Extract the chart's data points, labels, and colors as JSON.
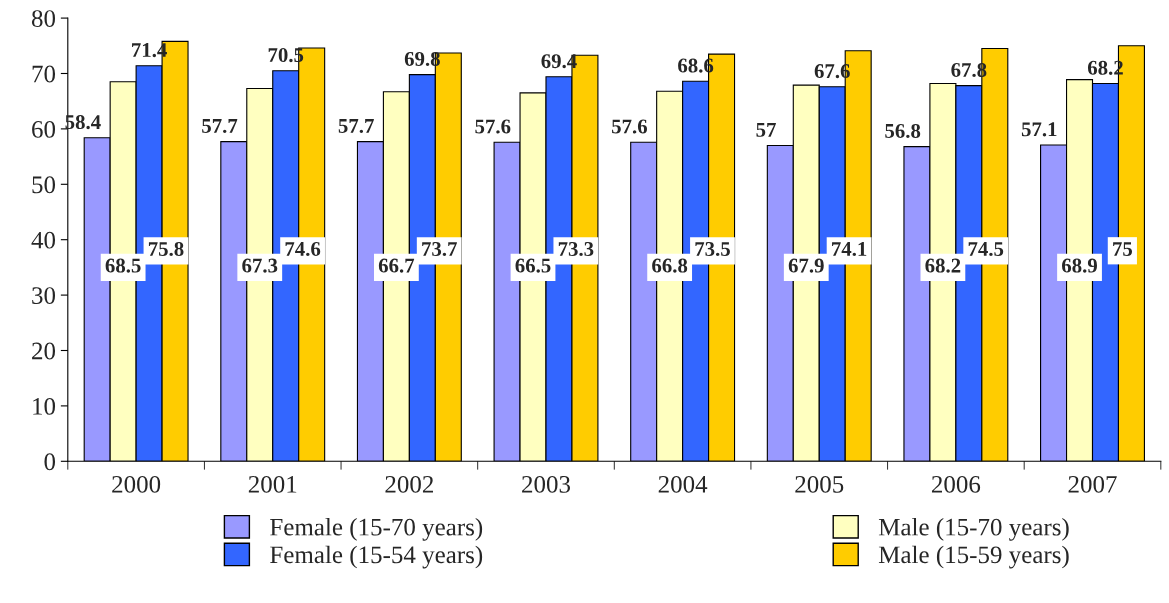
{
  "chart_data": {
    "type": "bar",
    "categories": [
      "2000",
      "2001",
      "2002",
      "2003",
      "2004",
      "2005",
      "2006",
      "2007"
    ],
    "series": [
      {
        "name": "Female (15-70 years)",
        "color": "#9999ff",
        "values": [
          58.4,
          57.7,
          57.7,
          57.6,
          57.6,
          57,
          56.8,
          57.1
        ]
      },
      {
        "name": "Male (15-70 years)",
        "color": "#ffffc0",
        "values": [
          68.5,
          67.3,
          66.7,
          66.5,
          66.8,
          67.9,
          68.2,
          68.9
        ]
      },
      {
        "name": "Female (15-54 years)",
        "color": "#3366ff",
        "values": [
          71.4,
          70.5,
          69.8,
          69.4,
          68.6,
          67.6,
          67.8,
          68.2
        ]
      },
      {
        "name": "Male (15-59 years)",
        "color": "#ffcc00",
        "values": [
          75.8,
          74.6,
          73.7,
          73.3,
          73.5,
          74.1,
          74.5,
          75
        ]
      }
    ],
    "ylim": [
      0,
      80
    ],
    "yticks": [
      0,
      10,
      20,
      30,
      40,
      50,
      60,
      70,
      80
    ],
    "data_labels": true,
    "legend": "bottom",
    "grid": false
  }
}
